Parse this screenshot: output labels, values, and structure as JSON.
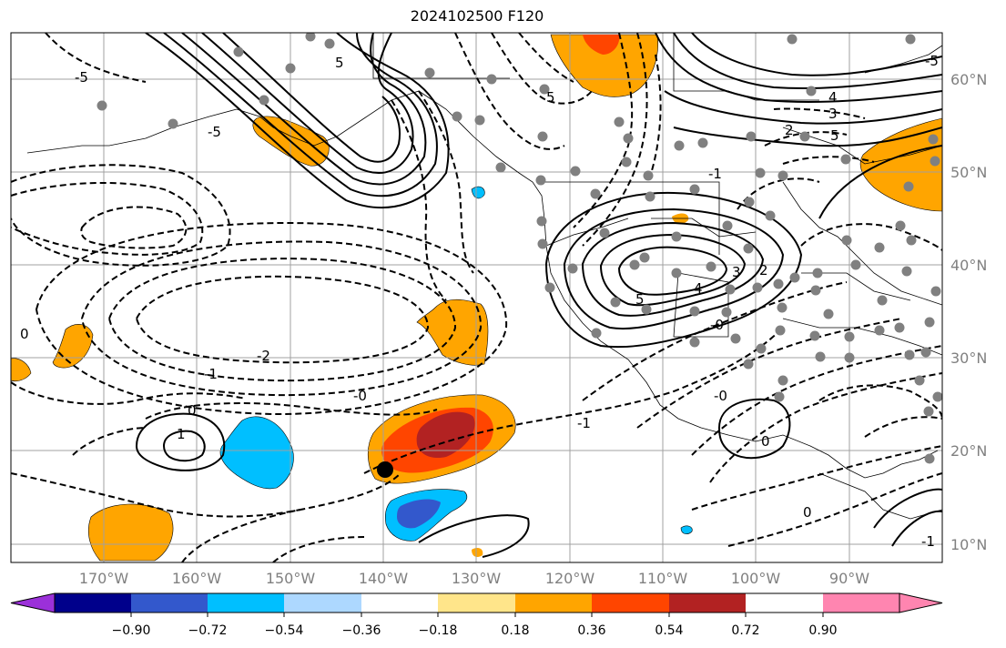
{
  "title": "2024102500 F120",
  "latitude_labels": [
    "60°N",
    "50°N",
    "40°N",
    "30°N",
    "20°N",
    "10°N"
  ],
  "longitude_labels": [
    "170°W",
    "160°W",
    "150°W",
    "140°W",
    "130°W",
    "120°W",
    "110°W",
    "100°W",
    "90°W"
  ],
  "colorbar": {
    "tick_labels": [
      "−0.90",
      "−0.72",
      "−0.54",
      "−0.36",
      "−0.18",
      "0.18",
      "0.36",
      "0.54",
      "0.72",
      "0.90"
    ],
    "colors": [
      "#9b30d9",
      "#00008b",
      "#3358cc",
      "#00bfff",
      "#add8ff",
      "#ffffff",
      "#ffe58a",
      "#ffa500",
      "#ff4500",
      "#b22222",
      "#ff85b0"
    ]
  },
  "contour_labels": [
    "5",
    "-5",
    "5",
    "-5",
    "4",
    "3",
    "2",
    "5",
    "-4",
    "-3",
    "-2",
    "-1",
    "-2",
    "-1",
    "-0",
    "0",
    "1",
    "-1",
    "-0",
    "0",
    "-1",
    "-1",
    "5",
    "4",
    "3",
    "2",
    "1",
    "-5",
    "-4",
    "-5",
    "-2",
    "-1",
    "0",
    "-0",
    "0"
  ],
  "storm_marker": "black-dot-storm-center",
  "colors": {
    "grid": "#a0a0a0",
    "frame": "#000000",
    "station_dots": "#808080"
  }
}
